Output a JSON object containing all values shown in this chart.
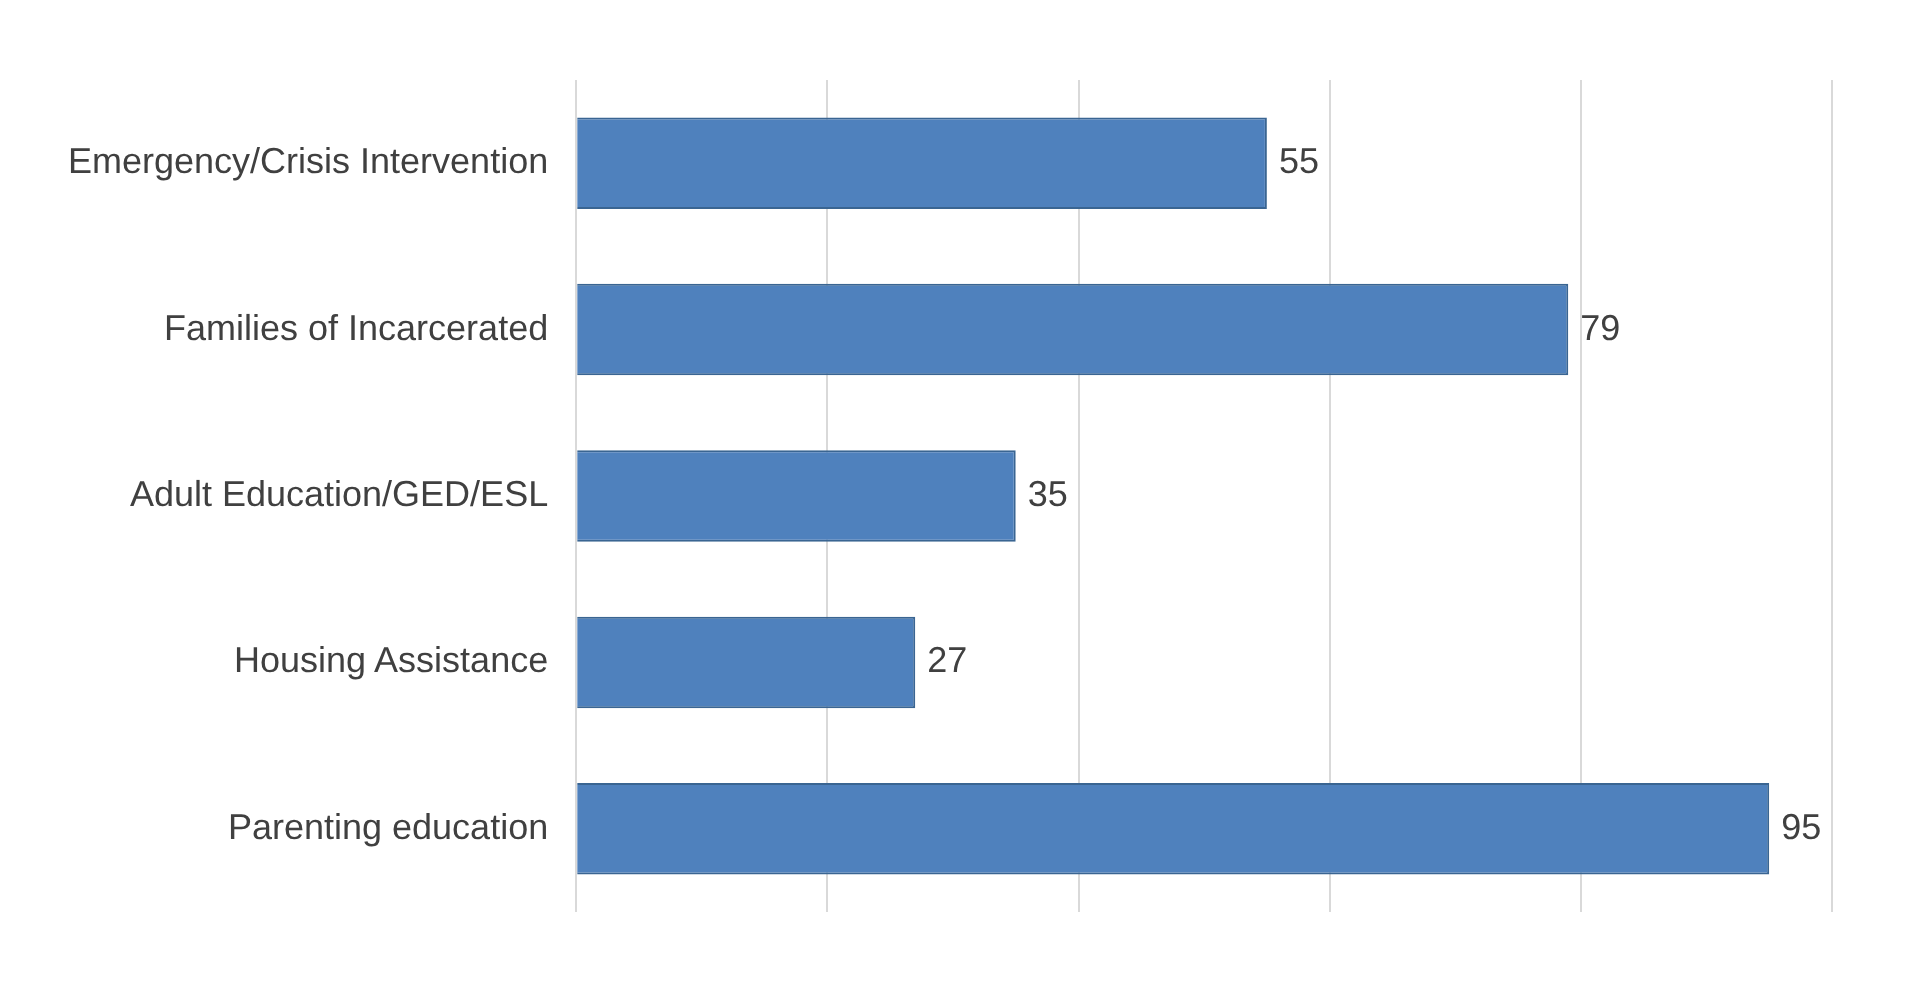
{
  "chart_data": {
    "type": "bar",
    "orientation": "horizontal",
    "categories": [
      "Emergency/Crisis Intervention",
      "Families of Incarcerated",
      "Adult Education/GED/ESL",
      "Housing Assistance",
      "Parenting education"
    ],
    "values": [
      55,
      79,
      35,
      27,
      95
    ],
    "color": "#4f81bd",
    "data_labels": true,
    "grid": "x",
    "xlim": [
      0,
      100
    ],
    "xticks": [
      {
        "value": 0,
        "label": null
      },
      {
        "value": 20,
        "label": null
      },
      {
        "value": 40,
        "label": null
      },
      {
        "value": 60,
        "label": null
      },
      {
        "value": 80,
        "label": null
      },
      {
        "value": 100,
        "label": null
      }
    ],
    "tick_labels": "y"
  }
}
